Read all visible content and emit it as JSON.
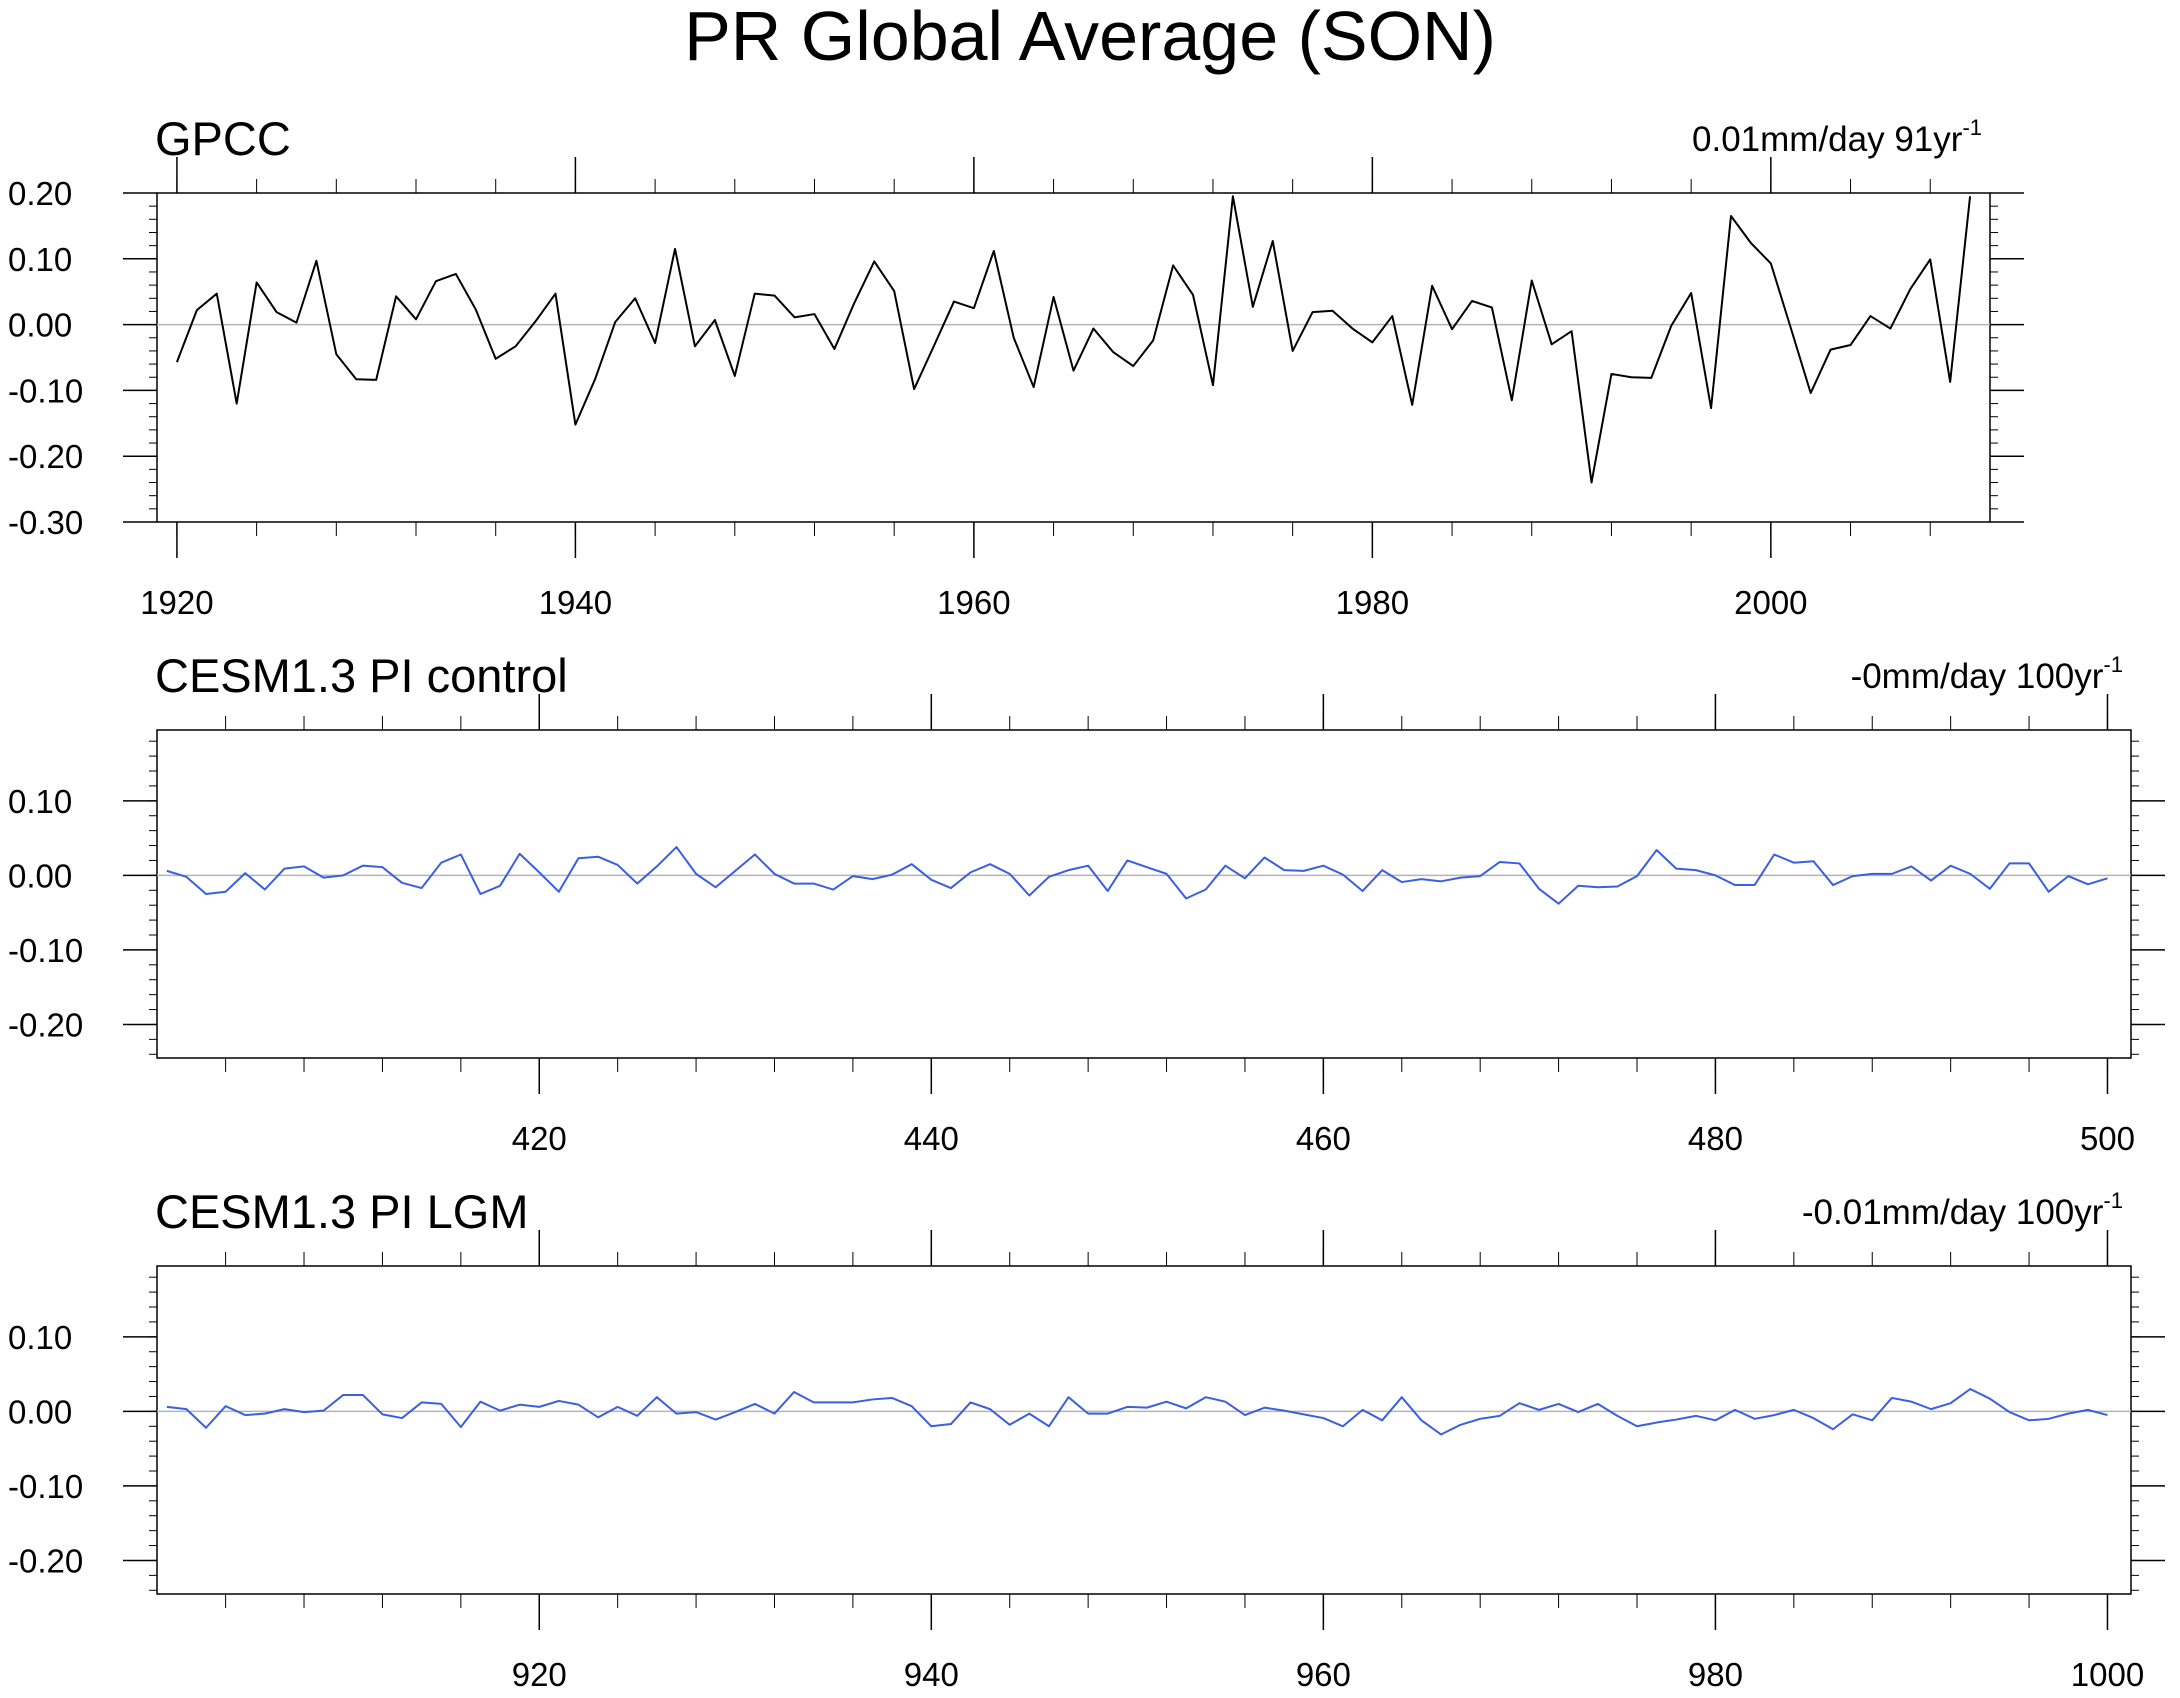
{
  "figure_title": "PR Global Average (SON)",
  "colors": {
    "obs_line": "#000000",
    "model_line": "#3a5fe0",
    "zero_line": "#b4b4b4",
    "axis": "#000000"
  },
  "chart_data": [
    {
      "type": "line",
      "title": "GPCC",
      "trend": {
        "value": "0.01mm/day",
        "period": "91yr",
        "exponent": "-1"
      },
      "xlim": [
        1919,
        2011
      ],
      "ylim": [
        -0.3,
        0.2
      ],
      "yticks": [
        -0.3,
        -0.2,
        -0.1,
        0.0,
        0.1,
        0.2
      ],
      "ytick_labels": [
        "-0.30",
        "-0.20",
        "-0.10",
        "0.00",
        "0.10",
        "0.20"
      ],
      "xticks": [
        1920,
        1940,
        1960,
        1980,
        2000
      ],
      "xtick_labels": [
        "1920",
        "1940",
        "1960",
        "1980",
        "2000"
      ],
      "x_start": 1920,
      "series": [
        {
          "name": "GPCC",
          "color": "#000000",
          "values": [
            -0.057,
            0.022,
            0.047,
            -0.12,
            0.064,
            0.019,
            0.003,
            0.097,
            -0.045,
            -0.083,
            -0.084,
            0.043,
            0.008,
            0.066,
            0.077,
            0.023,
            -0.052,
            -0.033,
            0.005,
            0.047,
            -0.152,
            -0.082,
            0.004,
            0.04,
            -0.028,
            0.115,
            -0.033,
            0.007,
            -0.078,
            0.047,
            0.044,
            0.011,
            0.016,
            -0.037,
            0.033,
            0.096,
            0.051,
            -0.098,
            -0.032,
            0.035,
            0.025,
            0.112,
            -0.02,
            -0.095,
            0.042,
            -0.07,
            -0.006,
            -0.042,
            -0.063,
            -0.024,
            0.09,
            0.045,
            -0.092,
            0.195,
            0.027,
            0.127,
            -0.04,
            0.019,
            0.021,
            -0.006,
            -0.027,
            0.013,
            -0.122,
            0.059,
            -0.007,
            0.036,
            0.026,
            -0.115,
            0.067,
            -0.03,
            -0.01,
            -0.24,
            -0.075,
            -0.08,
            -0.081,
            -0.002,
            0.048,
            -0.127,
            0.165,
            0.124,
            0.093,
            -0.005,
            -0.104,
            -0.038,
            -0.031,
            0.013,
            -0.006,
            0.054,
            0.099,
            -0.087,
            0.195
          ]
        }
      ]
    },
    {
      "type": "line",
      "title": "CESM1.3 PI control",
      "trend": {
        "value": "-0mm/day",
        "period": "100yr",
        "exponent": "-1"
      },
      "xlim": [
        400.5,
        501.2
      ],
      "ylim": [
        -0.245,
        0.195
      ],
      "yticks": [
        -0.2,
        -0.1,
        0.0,
        0.1
      ],
      "ytick_labels": [
        "-0.20",
        "-0.10",
        "0.00",
        "0.10"
      ],
      "xticks": [
        420,
        440,
        460,
        480,
        500
      ],
      "xtick_labels": [
        "420",
        "440",
        "460",
        "480",
        "500"
      ],
      "x_start": 401,
      "series": [
        {
          "name": "CESM1.3 PI control",
          "color": "#3a5fe0",
          "values": [
            0.006,
            -0.002,
            -0.025,
            -0.022,
            0.003,
            -0.019,
            0.009,
            0.012,
            -0.003,
            0.0,
            0.013,
            0.011,
            -0.01,
            -0.017,
            0.017,
            0.028,
            -0.025,
            -0.014,
            0.029,
            0.004,
            -0.022,
            0.023,
            0.025,
            0.014,
            -0.011,
            0.012,
            0.038,
            0.002,
            -0.016,
            0.006,
            0.028,
            0.002,
            -0.011,
            -0.011,
            -0.019,
            -0.001,
            -0.005,
            0.001,
            0.015,
            -0.006,
            -0.017,
            0.004,
            0.015,
            0.002,
            -0.027,
            -0.002,
            0.007,
            0.013,
            -0.021,
            0.02,
            0.011,
            0.002,
            -0.031,
            -0.019,
            0.013,
            -0.004,
            0.024,
            0.007,
            0.006,
            0.013,
            0.001,
            -0.021,
            0.007,
            -0.009,
            -0.005,
            -0.008,
            -0.003,
            -0.001,
            0.018,
            0.016,
            -0.018,
            -0.038,
            -0.014,
            -0.016,
            -0.015,
            -0.001,
            0.034,
            0.009,
            0.007,
            0.0,
            -0.013,
            -0.013,
            0.028,
            0.017,
            0.019,
            -0.013,
            -0.001,
            0.002,
            0.002,
            0.012,
            -0.007,
            0.013,
            0.002,
            -0.018,
            0.016,
            0.016,
            -0.022,
            -0.001,
            -0.012,
            -0.004
          ]
        }
      ]
    },
    {
      "type": "line",
      "title": "CESM1.3 PI LGM",
      "trend": {
        "value": "-0.01mm/day",
        "period": "100yr",
        "exponent": "-1"
      },
      "xlim": [
        900.5,
        1001.2
      ],
      "ylim": [
        -0.245,
        0.195
      ],
      "yticks": [
        -0.2,
        -0.1,
        0.0,
        0.1
      ],
      "ytick_labels": [
        "-0.20",
        "-0.10",
        "0.00",
        "0.10"
      ],
      "xticks": [
        920,
        940,
        960,
        980,
        1000
      ],
      "xtick_labels": [
        "920",
        "940",
        "960",
        "980",
        "1000"
      ],
      "x_start": 901,
      "series": [
        {
          "name": "CESM1.3 PI LGM",
          "color": "#3a5fe0",
          "values": [
            0.006,
            0.003,
            -0.022,
            0.007,
            -0.005,
            -0.003,
            0.003,
            -0.001,
            0.001,
            0.022,
            0.022,
            -0.004,
            -0.009,
            0.012,
            0.01,
            -0.021,
            0.013,
            0.001,
            0.009,
            0.006,
            0.014,
            0.009,
            -0.008,
            0.006,
            -0.006,
            0.019,
            -0.003,
            -0.001,
            -0.011,
            -0.001,
            0.01,
            -0.003,
            0.026,
            0.012,
            0.012,
            0.012,
            0.016,
            0.018,
            0.007,
            -0.02,
            -0.017,
            0.012,
            0.003,
            -0.018,
            -0.003,
            -0.02,
            0.019,
            -0.003,
            -0.003,
            0.006,
            0.005,
            0.013,
            0.004,
            0.019,
            0.013,
            -0.005,
            0.005,
            0.001,
            -0.004,
            -0.009,
            -0.02,
            0.002,
            -0.012,
            0.019,
            -0.012,
            -0.031,
            -0.018,
            -0.01,
            -0.006,
            0.011,
            0.002,
            0.01,
            -0.001,
            0.01,
            -0.006,
            -0.02,
            -0.015,
            -0.011,
            -0.006,
            -0.012,
            0.002,
            -0.01,
            -0.005,
            0.002,
            -0.009,
            -0.024,
            -0.004,
            -0.012,
            0.018,
            0.013,
            0.003,
            0.011,
            0.03,
            0.017,
            -0.001,
            -0.012,
            -0.01,
            -0.003,
            0.002,
            -0.005
          ]
        }
      ]
    }
  ]
}
